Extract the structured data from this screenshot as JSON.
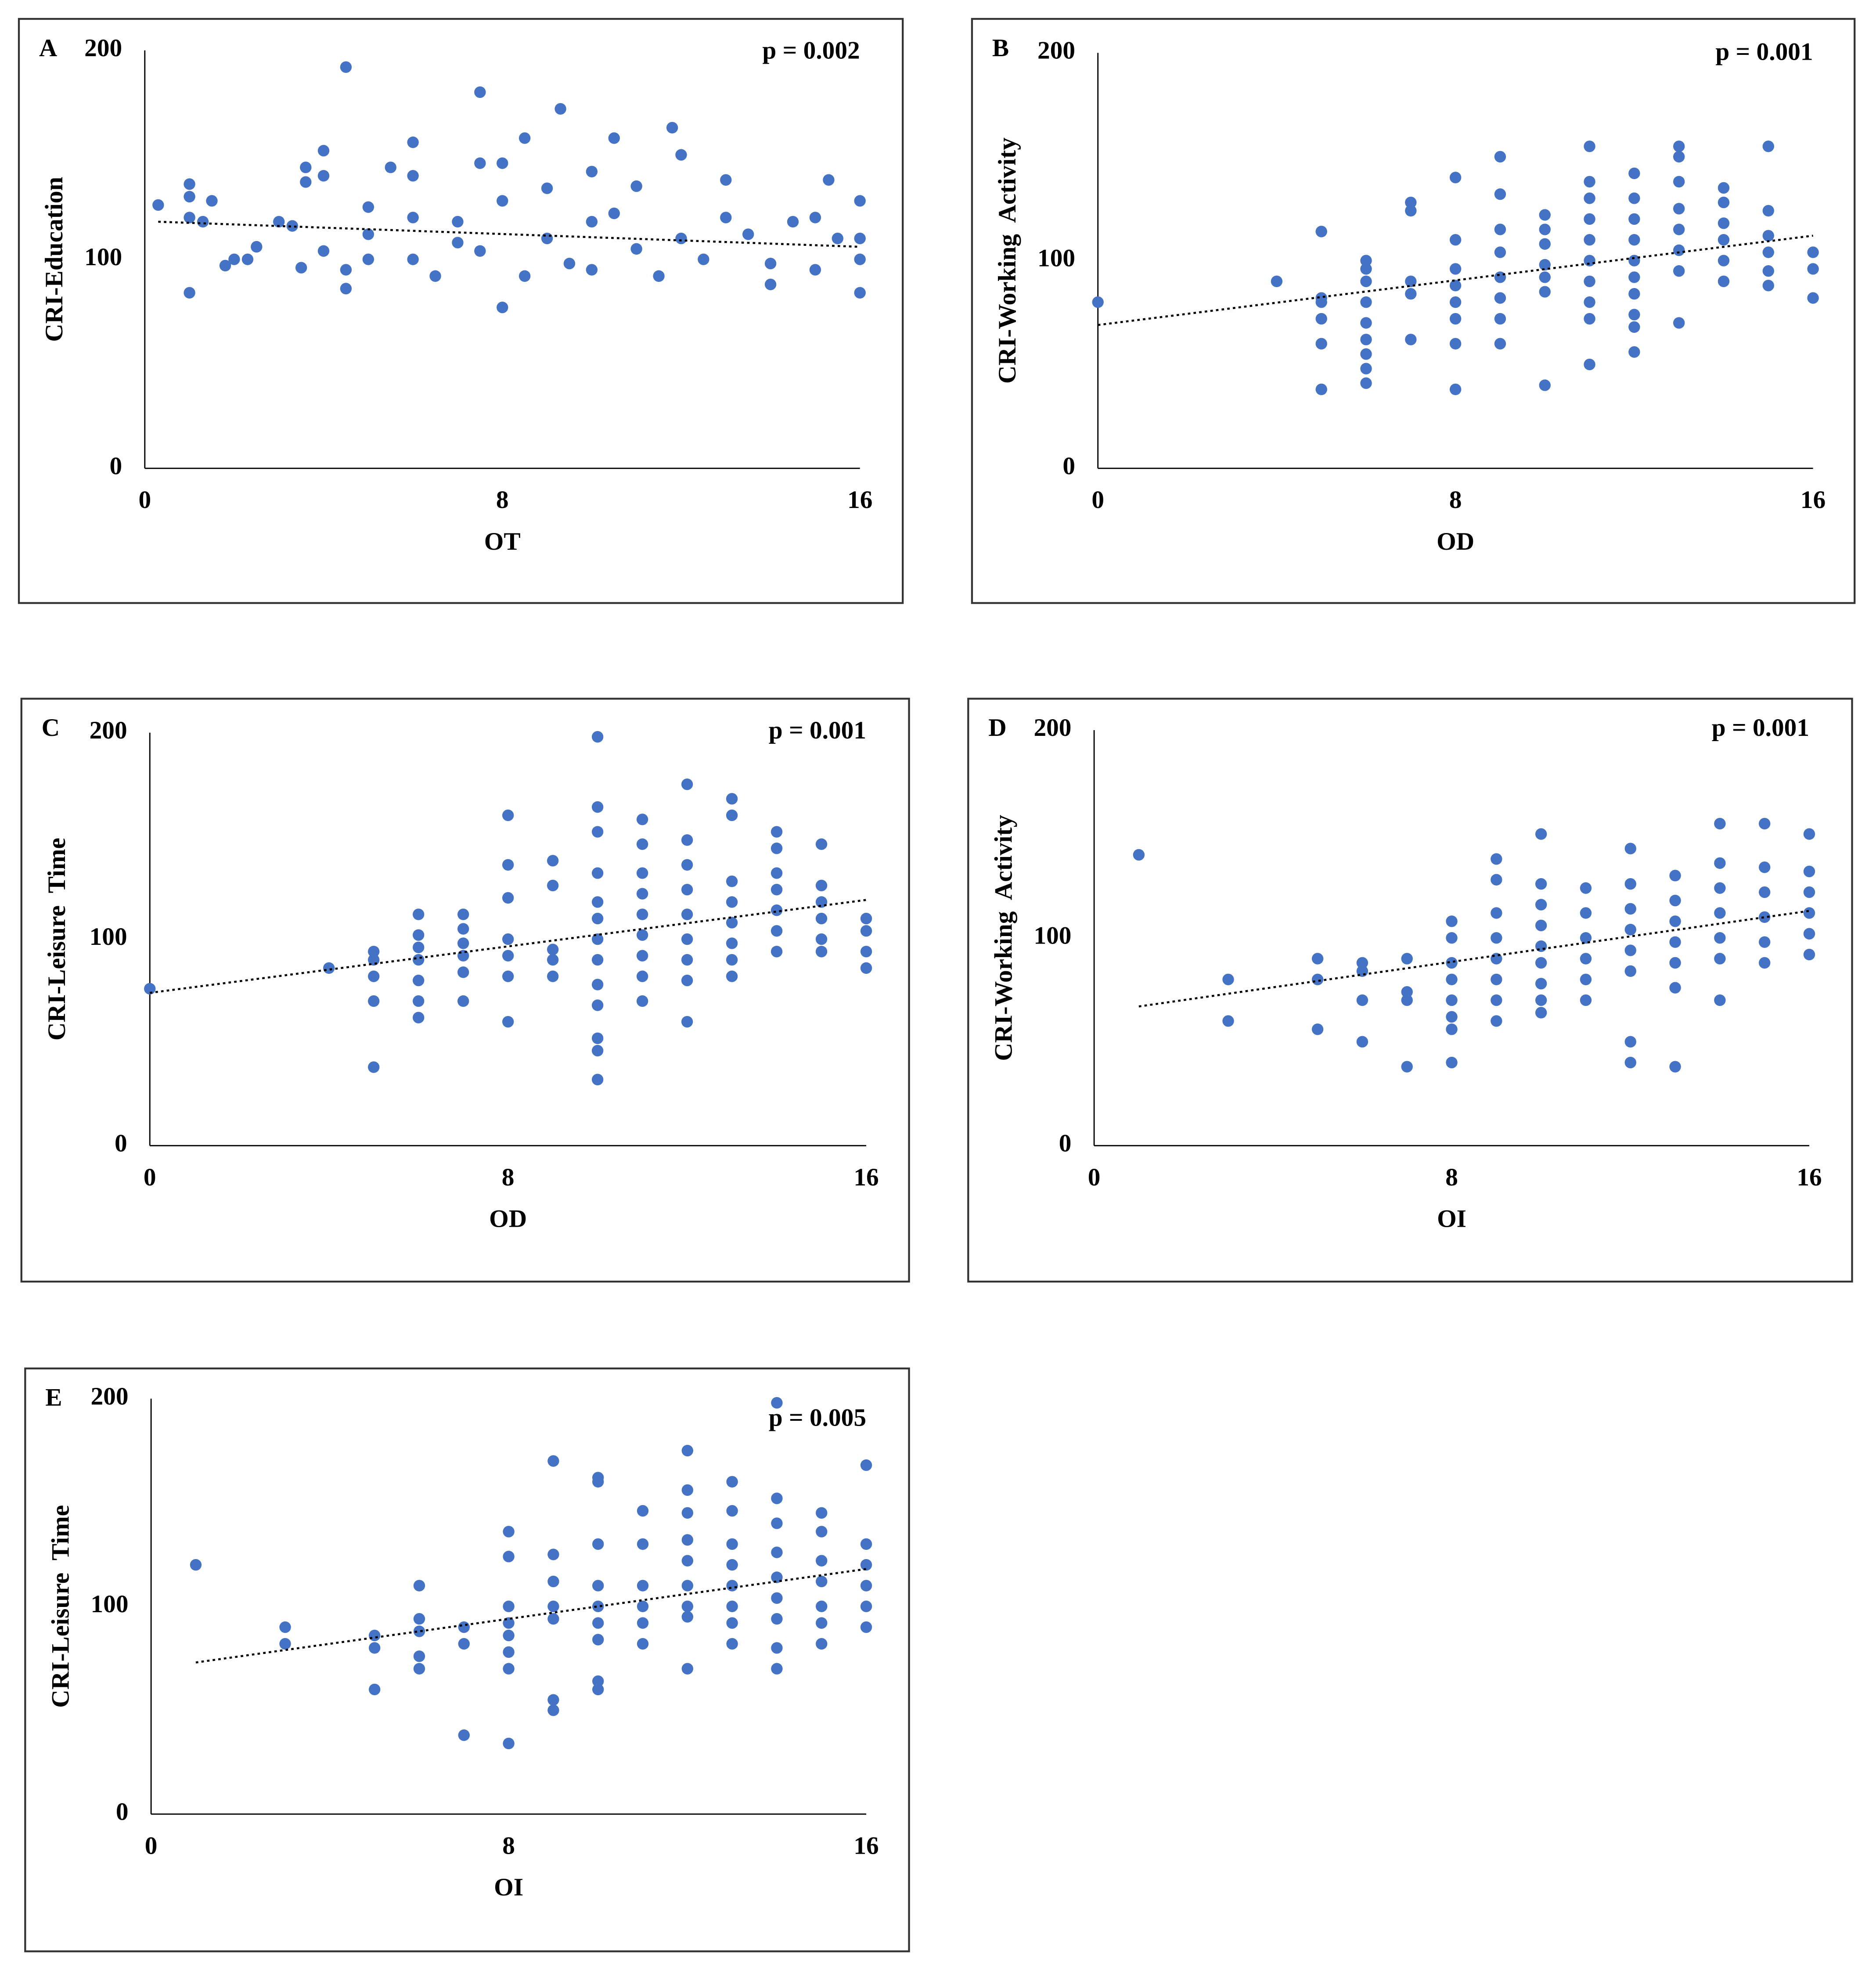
{
  "chart_data": [
    {
      "type": "scatter",
      "panel_label": "A",
      "annotation": "p = 0.002",
      "x_label": "OT",
      "y_label": "CRI-Education",
      "color": "#4472c4",
      "xlim": [
        0,
        16
      ],
      "ylim": [
        0,
        200
      ],
      "xticks": [
        0,
        8,
        16
      ],
      "yticks": [
        0,
        100,
        200
      ],
      "grid": false,
      "x": [
        0.3,
        1,
        1,
        1,
        1,
        1.3,
        1.5,
        1.8,
        2,
        2.3,
        2.5,
        3,
        3.3,
        3.5,
        3.6,
        3.6,
        4,
        4,
        4,
        4.5,
        4.5,
        4.5,
        5,
        5,
        5,
        5.5,
        6,
        6,
        6,
        6,
        6.5,
        7,
        7,
        7.5,
        7.5,
        7.5,
        8,
        8,
        8,
        8.5,
        8.5,
        9,
        9,
        9.3,
        9.5,
        10,
        10,
        10,
        10.5,
        10.5,
        11,
        11,
        11.5,
        11.8,
        12,
        12,
        12.5,
        13,
        13,
        13.5,
        14,
        14,
        14.5,
        15,
        15,
        15.3,
        15.5,
        16,
        16,
        16,
        16
      ],
      "values": [
        126,
        136,
        130,
        120,
        84,
        118,
        128,
        97,
        100,
        100,
        106,
        118,
        116,
        96,
        137,
        144,
        152,
        104,
        140,
        192,
        95,
        86,
        125,
        100,
        112,
        144,
        156,
        140,
        120,
        100,
        92,
        118,
        108,
        180,
        146,
        104,
        146,
        128,
        77,
        158,
        92,
        134,
        110,
        172,
        98,
        142,
        118,
        95,
        158,
        122,
        135,
        105,
        92,
        163,
        150,
        110,
        100,
        120,
        138,
        112,
        88,
        98,
        118,
        95,
        120,
        138,
        110,
        128,
        110,
        100,
        84
      ],
      "trend": {
        "x": [
          0.3,
          16
        ],
        "y": [
          118,
          106
        ]
      }
    },
    {
      "type": "scatter",
      "panel_label": "B",
      "annotation": "p = 0.001",
      "x_label": "OD",
      "y_label": "CRI-Working  Activity",
      "color": "#4472c4",
      "xlim": [
        0,
        16
      ],
      "ylim": [
        0,
        200
      ],
      "xticks": [
        0,
        8,
        16
      ],
      "yticks": [
        0,
        100,
        200
      ],
      "grid": false,
      "x": [
        0,
        4,
        5,
        5,
        5,
        5,
        5,
        5,
        6,
        6,
        6,
        6,
        6,
        6,
        6,
        6,
        6,
        7,
        7,
        7,
        7,
        7,
        8,
        8,
        8,
        8,
        8,
        8,
        8,
        8,
        9,
        9,
        9,
        9,
        9,
        9,
        9,
        9,
        10,
        10,
        10,
        10,
        10,
        10,
        10,
        11,
        11,
        11,
        11,
        11,
        11,
        11,
        11,
        11,
        11,
        12,
        12,
        12,
        12,
        12,
        12,
        12,
        12,
        12,
        12,
        13,
        13,
        13,
        13,
        13,
        13,
        13,
        13,
        14,
        14,
        14,
        14,
        14,
        14,
        15,
        15,
        15,
        15,
        15,
        15,
        16,
        16,
        16
      ],
      "values": [
        80,
        90,
        114,
        82,
        80,
        72,
        60,
        38,
        100,
        96,
        90,
        80,
        70,
        62,
        55,
        48,
        41,
        128,
        124,
        90,
        84,
        62,
        140,
        110,
        96,
        88,
        80,
        72,
        60,
        38,
        150,
        132,
        115,
        104,
        92,
        82,
        72,
        60,
        122,
        115,
        108,
        98,
        92,
        85,
        40,
        155,
        138,
        130,
        120,
        110,
        100,
        90,
        80,
        72,
        50,
        142,
        130,
        120,
        110,
        100,
        92,
        84,
        74,
        68,
        56,
        155,
        150,
        138,
        125,
        115,
        105,
        95,
        70,
        135,
        128,
        118,
        110,
        100,
        90,
        155,
        124,
        112,
        104,
        95,
        88,
        104,
        96,
        82
      ],
      "trend": {
        "x": [
          0,
          16
        ],
        "y": [
          69,
          112
        ]
      }
    },
    {
      "type": "scatter",
      "panel_label": "C",
      "annotation": "p = 0.001",
      "x_label": "OD",
      "y_label": "CRI-Leisure  Time",
      "color": "#4472c4",
      "xlim": [
        0,
        16
      ],
      "ylim": [
        0,
        200
      ],
      "xticks": [
        0,
        8,
        16
      ],
      "yticks": [
        0,
        100,
        200
      ],
      "grid": false,
      "x": [
        0,
        4,
        5,
        5,
        5,
        5,
        5,
        6,
        6,
        6,
        6,
        6,
        6,
        6,
        7,
        7,
        7,
        7,
        7,
        7,
        8,
        8,
        8,
        8,
        8,
        8,
        8,
        9,
        9,
        9,
        9,
        9,
        10,
        10,
        10,
        10,
        10,
        10,
        10,
        10,
        10,
        10,
        10,
        10,
        10,
        11,
        11,
        11,
        11,
        11,
        11,
        11,
        11,
        11,
        12,
        12,
        12,
        12,
        12,
        12,
        12,
        12,
        12,
        13,
        13,
        13,
        13,
        13,
        13,
        13,
        13,
        14,
        14,
        14,
        14,
        14,
        14,
        14,
        15,
        15,
        15,
        15,
        15,
        15,
        16,
        16,
        16,
        16
      ],
      "values": [
        76,
        86,
        94,
        90,
        82,
        70,
        38,
        112,
        102,
        96,
        90,
        80,
        70,
        62,
        112,
        105,
        98,
        92,
        84,
        70,
        160,
        136,
        120,
        100,
        92,
        82,
        60,
        138,
        126,
        95,
        90,
        82,
        198,
        164,
        152,
        132,
        118,
        110,
        100,
        90,
        78,
        68,
        52,
        46,
        32,
        158,
        146,
        132,
        122,
        112,
        102,
        92,
        82,
        70,
        175,
        148,
        136,
        124,
        112,
        100,
        90,
        80,
        60,
        168,
        160,
        128,
        118,
        108,
        98,
        90,
        82,
        152,
        144,
        132,
        124,
        114,
        104,
        94,
        146,
        126,
        118,
        110,
        100,
        94,
        110,
        104,
        94,
        86
      ],
      "trend": {
        "x": [
          0,
          16
        ],
        "y": [
          74,
          119
        ]
      }
    },
    {
      "type": "scatter",
      "panel_label": "D",
      "annotation": "p = 0.001",
      "x_label": "OI",
      "y_label": "CRI-Working  Activity",
      "color": "#4472c4",
      "xlim": [
        0,
        16
      ],
      "ylim": [
        0,
        200
      ],
      "xticks": [
        0,
        8,
        16
      ],
      "yticks": [
        0,
        100,
        200
      ],
      "grid": false,
      "x": [
        1,
        3,
        3,
        5,
        5,
        5,
        6,
        6,
        6,
        6,
        7,
        7,
        7,
        7,
        8,
        8,
        8,
        8,
        8,
        8,
        8,
        8,
        9,
        9,
        9,
        9,
        9,
        9,
        9,
        9,
        10,
        10,
        10,
        10,
        10,
        10,
        10,
        10,
        10,
        11,
        11,
        11,
        11,
        11,
        11,
        12,
        12,
        12,
        12,
        12,
        12,
        12,
        12,
        13,
        13,
        13,
        13,
        13,
        13,
        13,
        14,
        14,
        14,
        14,
        14,
        14,
        14,
        15,
        15,
        15,
        15,
        15,
        15,
        16,
        16,
        16,
        16,
        16,
        16
      ],
      "values": [
        140,
        80,
        60,
        90,
        80,
        56,
        88,
        84,
        70,
        50,
        90,
        74,
        70,
        38,
        108,
        100,
        88,
        80,
        70,
        62,
        56,
        40,
        138,
        128,
        112,
        100,
        90,
        80,
        70,
        60,
        150,
        126,
        116,
        106,
        96,
        88,
        78,
        70,
        64,
        124,
        112,
        100,
        90,
        80,
        70,
        143,
        126,
        114,
        104,
        94,
        84,
        50,
        40,
        130,
        118,
        108,
        98,
        88,
        76,
        38,
        155,
        136,
        124,
        112,
        100,
        90,
        70,
        155,
        134,
        122,
        110,
        98,
        88,
        150,
        132,
        122,
        112,
        102,
        92
      ],
      "trend": {
        "x": [
          1,
          16
        ],
        "y": [
          67,
          113
        ]
      }
    },
    {
      "type": "scatter",
      "panel_label": "E",
      "annotation": "p = 0.005",
      "x_label": "OI",
      "y_label": "CRI-Leisure  Time",
      "color": "#4472c4",
      "xlim": [
        0,
        16
      ],
      "ylim": [
        0,
        200
      ],
      "xticks": [
        0,
        8,
        16
      ],
      "yticks": [
        0,
        100,
        200
      ],
      "grid": false,
      "x": [
        1,
        3,
        3,
        5,
        5,
        5,
        6,
        6,
        6,
        6,
        6,
        7,
        7,
        7,
        8,
        8,
        8,
        8,
        8,
        8,
        8,
        8,
        9,
        9,
        9,
        9,
        9,
        9,
        9,
        10,
        10,
        10,
        10,
        10,
        10,
        10,
        10,
        10,
        11,
        11,
        11,
        11,
        11,
        11,
        12,
        12,
        12,
        12,
        12,
        12,
        12,
        12,
        12,
        13,
        13,
        13,
        13,
        13,
        13,
        13,
        13,
        14,
        14,
        14,
        14,
        14,
        14,
        14,
        14,
        14,
        15,
        15,
        15,
        15,
        15,
        15,
        15,
        16,
        16,
        16,
        16,
        16,
        16
      ],
      "values": [
        120,
        90,
        82,
        86,
        80,
        60,
        110,
        94,
        88,
        76,
        70,
        90,
        82,
        38,
        136,
        124,
        100,
        92,
        86,
        78,
        70,
        34,
        170,
        125,
        112,
        100,
        94,
        55,
        50,
        162,
        160,
        130,
        110,
        100,
        92,
        84,
        64,
        60,
        146,
        130,
        110,
        100,
        92,
        82,
        175,
        156,
        145,
        132,
        122,
        110,
        100,
        95,
        70,
        160,
        146,
        130,
        120,
        110,
        100,
        92,
        82,
        198,
        152,
        140,
        126,
        114,
        104,
        94,
        80,
        70,
        145,
        136,
        122,
        112,
        100,
        92,
        82,
        168,
        130,
        120,
        110,
        100,
        90
      ],
      "trend": {
        "x": [
          1,
          16
        ],
        "y": [
          73,
          118
        ]
      }
    }
  ]
}
